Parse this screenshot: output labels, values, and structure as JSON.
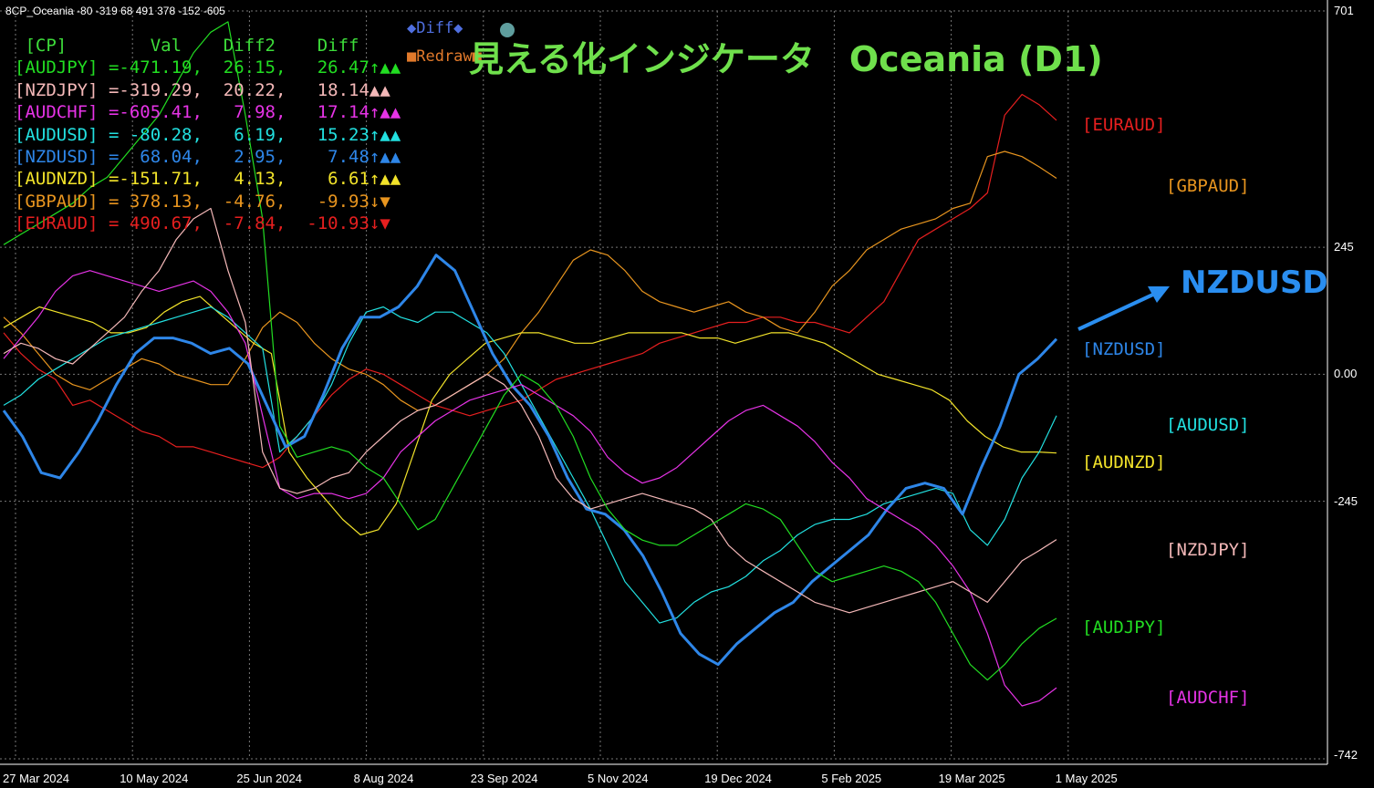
{
  "window": {
    "header": "8CP_Oceania -80 -319 68 491 378 -152 -605"
  },
  "title": "見える化インジケータ　Oceania (D1)",
  "buttons": {
    "diff_label": "◆Diff◆",
    "redraw_label": "■Redraw■"
  },
  "table": {
    "columns": [
      "[CP]",
      "Val",
      "Diff2",
      "Diff"
    ],
    "rows": [
      {
        "pair": "[AUDJPY]",
        "val": "=-471.19,",
        "diff2": "26.15,",
        "diff": "26.47",
        "arrows": "↑▲▲",
        "color": "#22dd22"
      },
      {
        "pair": "[NZDJPY]",
        "val": "=-319.29,",
        "diff2": "20.22,",
        "diff": "18.14",
        "arrows": "▲▲",
        "color": "#f4b8b8"
      },
      {
        "pair": "[AUDCHF]",
        "val": "=-605.41,",
        "diff2": "7.98,",
        "diff": "17.14",
        "arrows": "↑▲▲",
        "color": "#e633e6"
      },
      {
        "pair": "[AUDUSD]",
        "val": "= -80.28,",
        "diff2": "6.19,",
        "diff": "15.23",
        "arrows": "↑▲▲",
        "color": "#22e0e0"
      },
      {
        "pair": "[NZDUSD]",
        "val": "=  68.04,",
        "diff2": "2.95,",
        "diff": "7.48",
        "arrows": "↑▲▲",
        "color": "#2e86e8"
      },
      {
        "pair": "[AUDNZD]",
        "val": "=-151.71,",
        "diff2": "4.13,",
        "diff": "6.61",
        "arrows": "↑▲▲",
        "color": "#f2e32a"
      },
      {
        "pair": "[GBPAUD]",
        "val": "= 378.13,",
        "diff2": "-4.76,",
        "diff": "-9.93",
        "arrows": "↓▼",
        "color": "#e8951f"
      },
      {
        "pair": "[EURAUD]",
        "val": "= 490.67,",
        "diff2": "-7.84,",
        "diff": "-10.93",
        "arrows": "↓▼",
        "color": "#e61f1f"
      }
    ]
  },
  "annotation": "NZDUSD",
  "chart_data": {
    "type": "line",
    "ylim": [
      -742,
      701
    ],
    "y_ticks": [
      "701",
      "245",
      "0.00",
      "-245",
      "-742"
    ],
    "x_ticks": [
      "27 Mar 2024",
      "10 May 2024",
      "25 Jun 2024",
      "8 Aug 2024",
      "23 Sep 2024",
      "5 Nov 2024",
      "19 Dec 2024",
      "5 Feb 2025",
      "19 Mar 2025",
      "1 May 2025"
    ],
    "grid": true,
    "series": [
      {
        "name": "[EURAUD]",
        "color": "#e61f1f",
        "width": 1.2,
        "values": [
          80,
          40,
          10,
          -10,
          -60,
          -50,
          -70,
          -90,
          -110,
          -120,
          -140,
          -140,
          -150,
          -160,
          -170,
          -180,
          -160,
          -120,
          -80,
          -40,
          -10,
          10,
          0,
          -20,
          -40,
          -60,
          -70,
          -80,
          -70,
          -60,
          -50,
          -30,
          -10,
          0,
          10,
          20,
          30,
          40,
          60,
          70,
          80,
          90,
          100,
          100,
          110,
          110,
          100,
          100,
          90,
          80,
          110,
          140,
          200,
          260,
          280,
          300,
          320,
          350,
          500,
          540,
          520,
          490
        ]
      },
      {
        "name": "[GBPAUD]",
        "color": "#e8951f",
        "width": 1.2,
        "values": [
          110,
          80,
          40,
          0,
          -20,
          -30,
          -10,
          10,
          30,
          20,
          0,
          -10,
          -20,
          -20,
          30,
          90,
          120,
          100,
          60,
          30,
          10,
          0,
          -20,
          -50,
          -70,
          -60,
          -40,
          -20,
          0,
          30,
          80,
          120,
          170,
          220,
          240,
          230,
          200,
          160,
          140,
          130,
          120,
          130,
          140,
          120,
          110,
          90,
          80,
          120,
          170,
          200,
          240,
          260,
          280,
          290,
          300,
          320,
          330,
          420,
          430,
          420,
          400,
          378
        ]
      },
      {
        "name": "[AUDNZD]",
        "color": "#f2e32a",
        "width": 1.2,
        "values": [
          90,
          110,
          130,
          120,
          110,
          100,
          80,
          80,
          90,
          120,
          140,
          150,
          120,
          90,
          60,
          40,
          -150,
          -200,
          -240,
          -280,
          -310,
          -300,
          -250,
          -150,
          -50,
          0,
          30,
          60,
          70,
          80,
          80,
          70,
          60,
          60,
          70,
          80,
          80,
          80,
          80,
          70,
          70,
          60,
          70,
          80,
          80,
          70,
          60,
          40,
          20,
          0,
          -10,
          -20,
          -30,
          -50,
          -90,
          -120,
          -140,
          -150,
          -150,
          -152
        ]
      },
      {
        "name": "[AUDUSD]",
        "color": "#22e0e0",
        "width": 1.2,
        "values": [
          -60,
          -40,
          -10,
          10,
          30,
          50,
          70,
          80,
          90,
          100,
          110,
          120,
          130,
          110,
          80,
          50,
          -150,
          -120,
          -80,
          -20,
          60,
          120,
          130,
          110,
          100,
          120,
          120,
          100,
          80,
          40,
          -20,
          -80,
          -140,
          -200,
          -260,
          -330,
          -400,
          -440,
          -480,
          -470,
          -440,
          -420,
          -410,
          -390,
          -360,
          -340,
          -310,
          -290,
          -280,
          -280,
          -270,
          -250,
          -240,
          -230,
          -220,
          -230,
          -300,
          -330,
          -280,
          -200,
          -150,
          -80
        ]
      },
      {
        "name": "[NZDUSD]",
        "color": "#2e86e8",
        "width": 3.0,
        "values": [
          -70,
          -120,
          -190,
          -200,
          -150,
          -90,
          -20,
          40,
          70,
          70,
          60,
          40,
          50,
          20,
          -60,
          -140,
          -120,
          -40,
          50,
          110,
          110,
          130,
          170,
          230,
          200,
          120,
          40,
          -20,
          -60,
          -120,
          -200,
          -260,
          -270,
          -300,
          -350,
          -420,
          -500,
          -540,
          -560,
          -520,
          -490,
          -460,
          -440,
          -400,
          -370,
          -340,
          -310,
          -260,
          -220,
          -210,
          -220,
          -270,
          -180,
          -100,
          0,
          30,
          68
        ]
      },
      {
        "name": "[AUDCHF]",
        "color": "#e633e6",
        "width": 1.2,
        "values": [
          30,
          70,
          110,
          160,
          190,
          200,
          190,
          180,
          170,
          160,
          170,
          180,
          160,
          120,
          60,
          -80,
          -220,
          -240,
          -230,
          -230,
          -240,
          -230,
          -200,
          -150,
          -120,
          -90,
          -70,
          -50,
          -40,
          -30,
          -20,
          -40,
          -60,
          -80,
          -110,
          -160,
          -190,
          -210,
          -200,
          -180,
          -150,
          -120,
          -90,
          -70,
          -60,
          -80,
          -100,
          -130,
          -170,
          -200,
          -240,
          -260,
          -280,
          -300,
          -330,
          -370,
          -420,
          -500,
          -600,
          -640,
          -630,
          -605
        ]
      },
      {
        "name": "[NZDJPY]",
        "color": "#f4b8b8",
        "width": 1.2,
        "values": [
          40,
          60,
          50,
          30,
          20,
          50,
          80,
          110,
          160,
          200,
          260,
          300,
          320,
          200,
          100,
          -150,
          -220,
          -230,
          -220,
          -200,
          -190,
          -150,
          -120,
          -90,
          -70,
          -60,
          -40,
          -20,
          0,
          -20,
          -60,
          -120,
          -200,
          -240,
          -260,
          -250,
          -240,
          -230,
          -240,
          -250,
          -260,
          -280,
          -330,
          -360,
          -380,
          -400,
          -420,
          -440,
          -450,
          -460,
          -450,
          -440,
          -430,
          -420,
          -410,
          -400,
          -420,
          -440,
          -400,
          -360,
          -340,
          -319
        ]
      },
      {
        "name": "[AUDJPY]",
        "color": "#22dd22",
        "width": 1.2,
        "values": [
          250,
          270,
          290,
          310,
          330,
          360,
          380,
          420,
          460,
          500,
          560,
          620,
          660,
          680,
          500,
          300,
          -100,
          -160,
          -150,
          -140,
          -150,
          -180,
          -200,
          -250,
          -300,
          -280,
          -220,
          -160,
          -100,
          -40,
          0,
          -20,
          -60,
          -120,
          -200,
          -260,
          -300,
          -320,
          -330,
          -330,
          -310,
          -290,
          -270,
          -250,
          -260,
          -280,
          -330,
          -380,
          -400,
          -390,
          -380,
          -370,
          -380,
          -400,
          -440,
          -500,
          -560,
          -590,
          -560,
          -520,
          -490,
          -471
        ]
      }
    ],
    "right_labels": [
      {
        "name": "[EURAUD]",
        "color": "#e61f1f",
        "col": 0,
        "value": 480
      },
      {
        "name": "[GBPAUD]",
        "color": "#e8951f",
        "col": 1,
        "value": 362
      },
      {
        "name": "[NZDUSD]",
        "color": "#2e86e8",
        "col": 0,
        "value": 47
      },
      {
        "name": "[AUDUSD]",
        "color": "#22e0e0",
        "col": 1,
        "value": -100
      },
      {
        "name": "[AUDNZD]",
        "color": "#f2e32a",
        "col": 0,
        "value": -172
      },
      {
        "name": "[NZDJPY]",
        "color": "#f4b8b8",
        "col": 1,
        "value": -340
      },
      {
        "name": "[AUDJPY]",
        "color": "#22dd22",
        "col": 0,
        "value": -490
      },
      {
        "name": "[AUDCHF]",
        "color": "#e633e6",
        "col": 1,
        "value": -625
      }
    ]
  }
}
